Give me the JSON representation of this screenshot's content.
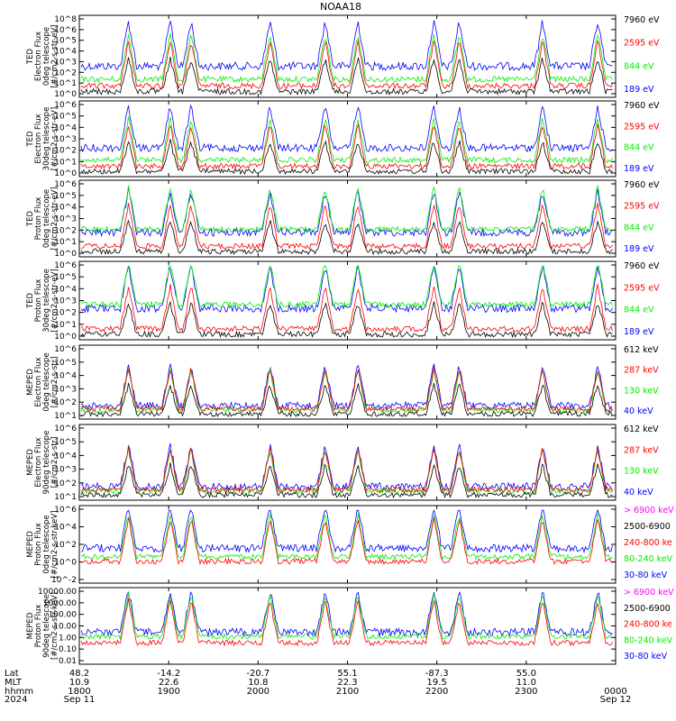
{
  "title": "NOAA18",
  "colors": {
    "blue": "#0000ff",
    "red": "#ff0000",
    "green": "#00ee00",
    "black": "#000000",
    "magenta": "#ff00ff"
  },
  "panels": [
    {
      "id": "ted-e-0",
      "ylabel": [
        "TED",
        "Electron Flux",
        "0deg telescope",
        "[#/cm2-s-str-eV]"
      ],
      "ticks": [
        "10^8",
        "10^6",
        "10^5",
        "10^4",
        "10^3",
        "10^2",
        "10^1",
        "10^0"
      ],
      "legend": [
        {
          "text": "7960 eV",
          "color": "black"
        },
        {
          "text": "2595 eV",
          "color": "red"
        },
        {
          "text": "844 eV",
          "color": "green"
        },
        {
          "text": "189 eV",
          "color": "blue"
        }
      ]
    },
    {
      "id": "ted-e-30",
      "ylabel": [
        "TED",
        "Electron Flux",
        "30deg telescope",
        "[#/cm2-s-str-eV]"
      ],
      "ticks": [
        "10^6",
        "10^5",
        "10^4",
        "10^3",
        "10^2",
        "10^1",
        "10^0"
      ],
      "legend": [
        {
          "text": "7960 eV",
          "color": "black"
        },
        {
          "text": "2595 eV",
          "color": "red"
        },
        {
          "text": "844 eV",
          "color": "green"
        },
        {
          "text": "189 eV",
          "color": "blue"
        }
      ]
    },
    {
      "id": "ted-p-0",
      "ylabel": [
        "TED",
        "Proton Flux",
        "0deg telescope",
        "[#/cm2-s-str-eV]"
      ],
      "ticks": [
        "10^6",
        "10^5",
        "10^4",
        "10^3",
        "10^2",
        "10^1",
        "10^0"
      ],
      "legend": [
        {
          "text": "7960 eV",
          "color": "black"
        },
        {
          "text": "2595 eV",
          "color": "red"
        },
        {
          "text": "844 eV",
          "color": "green"
        },
        {
          "text": "189 eV",
          "color": "blue"
        }
      ]
    },
    {
      "id": "ted-p-30",
      "ylabel": [
        "TED",
        "Proton Flux",
        "30deg telescope",
        "[#/cm2-s-str-eV]"
      ],
      "ticks": [
        "10^6",
        "10^5",
        "10^4",
        "10^3",
        "10^2",
        "10^1",
        "10^0"
      ],
      "legend": [
        {
          "text": "7960 eV",
          "color": "black"
        },
        {
          "text": "2595 eV",
          "color": "red"
        },
        {
          "text": "844 eV",
          "color": "green"
        },
        {
          "text": "189 eV",
          "color": "blue"
        }
      ]
    },
    {
      "id": "meped-e-0",
      "ylabel": [
        "MEPED",
        "Electron Flux",
        "0deg telescope",
        "[#/cm2-s-str]"
      ],
      "ticks": [
        "10^6",
        "10^5",
        "10^4",
        "10^3",
        "10^2",
        "10^1"
      ],
      "legend": [
        {
          "text": "612 keV",
          "color": "black"
        },
        {
          "text": "287 keV",
          "color": "red"
        },
        {
          "text": "130 keV",
          "color": "green"
        },
        {
          "text": "40 keV",
          "color": "blue"
        }
      ]
    },
    {
      "id": "meped-e-90",
      "ylabel": [
        "MEPED",
        "Electron Flux",
        "90deg telescope",
        "[#/cm2-s-str]"
      ],
      "ticks": [
        "10^6",
        "10^5",
        "10^4",
        "10^3",
        "10^2",
        "10^1"
      ],
      "legend": [
        {
          "text": "612 keV",
          "color": "black"
        },
        {
          "text": "287 keV",
          "color": "red"
        },
        {
          "text": "130 keV",
          "color": "green"
        },
        {
          "text": "40 keV",
          "color": "blue"
        }
      ]
    },
    {
      "id": "meped-p-0",
      "ylabel": [
        "MEPED",
        "Proton Flux",
        "0deg telescope",
        "[#/cm2-s-str-keV]"
      ],
      "ticks": [
        "10^6",
        "10^4",
        "10^2",
        "10^0",
        "10^-2"
      ],
      "legend": [
        {
          "text": "> 6900 keV",
          "color": "magenta"
        },
        {
          "text": "2500-6900",
          "color": "black"
        },
        {
          "text": "240-800 ke",
          "color": "red"
        },
        {
          "text": "80-240 keV",
          "color": "green"
        },
        {
          "text": "30-80 keV",
          "color": "blue"
        }
      ]
    },
    {
      "id": "meped-p-90",
      "ylabel": [
        "MEPED",
        "Proton Flux",
        "90deg telescope",
        "[#/cm2-s-str-keV]"
      ],
      "ticks": [
        "10000.00",
        "1000.00",
        "100.00",
        "10.00",
        "1.00",
        "0.10",
        "0.01"
      ],
      "legend": [
        {
          "text": "> 6900 keV",
          "color": "magenta"
        },
        {
          "text": "2500-6900",
          "color": "black"
        },
        {
          "text": "240-800 ke",
          "color": "red"
        },
        {
          "text": "80-240 keV",
          "color": "green"
        },
        {
          "text": "30-80 keV",
          "color": "blue"
        }
      ]
    }
  ],
  "orbit": {
    "row_labels": [
      "Lat",
      "MLT",
      "hhmm",
      "2024"
    ],
    "columns": [
      {
        "lat": "48.2",
        "mlt": "10.9",
        "hhmm": "1800",
        "date": "Sep 11"
      },
      {
        "lat": "-14.2",
        "mlt": "22.6",
        "hhmm": "1900",
        "date": ""
      },
      {
        "lat": "-20.7",
        "mlt": "10.8",
        "hhmm": "2000",
        "date": ""
      },
      {
        "lat": "55.1",
        "mlt": "22.3",
        "hhmm": "2100",
        "date": ""
      },
      {
        "lat": "-87.3",
        "mlt": "19.5",
        "hhmm": "2200",
        "date": ""
      },
      {
        "lat": "55.0",
        "mlt": "11.0",
        "hhmm": "2300",
        "date": ""
      },
      {
        "lat": "",
        "mlt": "",
        "hhmm": "0000",
        "date": "Sep 12"
      }
    ]
  },
  "chart_data": {
    "type": "line",
    "title": "NOAA18",
    "x_axis": {
      "unit": "hhmm",
      "range": [
        "1800 Sep 11",
        "0000 Sep 12"
      ],
      "ticks": [
        "1800",
        "1900",
        "2000",
        "2100",
        "2200",
        "2300",
        "0000"
      ]
    },
    "burst_times_hhmm": [
      "1833",
      "1901",
      "1915",
      "2008",
      "2045",
      "2107",
      "2158",
      "2215",
      "2311",
      "2348"
    ],
    "grid": false,
    "log_scale_y": true
  }
}
